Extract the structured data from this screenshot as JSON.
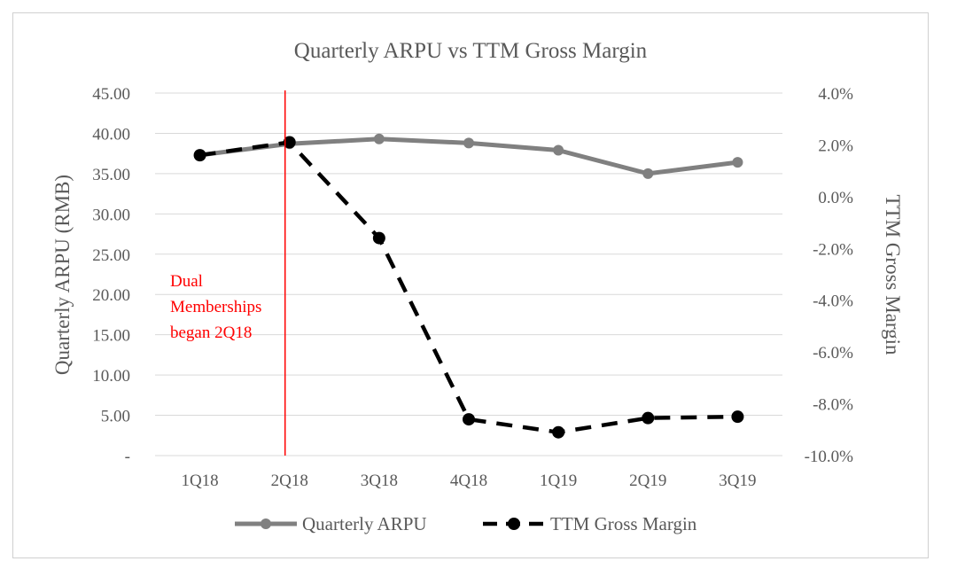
{
  "chart_data": {
    "type": "line",
    "title": "Quarterly ARPU vs TTM Gross Margin",
    "xlabel": "",
    "categories": [
      "1Q18",
      "2Q18",
      "3Q18",
      "4Q18",
      "1Q19",
      "2Q19",
      "3Q19"
    ],
    "y_left": {
      "label": "Quarterly ARPU (RMB)",
      "ylim": [
        0,
        45
      ],
      "ticks": [
        0,
        5,
        10,
        15,
        20,
        25,
        30,
        35,
        40,
        45
      ],
      "tick_labels": [
        "-",
        "5.00",
        "10.00",
        "15.00",
        "20.00",
        "25.00",
        "30.00",
        "35.00",
        "40.00",
        "45.00"
      ]
    },
    "y_right": {
      "label": "TTM Gross Margin",
      "ylim": [
        -10,
        4
      ],
      "ticks": [
        -10,
        -8,
        -6,
        -4,
        -2,
        0,
        2,
        4
      ],
      "tick_labels": [
        "-10.0%",
        "-8.0%",
        "-6.0%",
        "-4.0%",
        "-2.0%",
        "0.0%",
        "2.0%",
        "4.0%"
      ]
    },
    "series": [
      {
        "name": "Quarterly ARPU",
        "axis": "left",
        "style": "solid",
        "color": "#808080",
        "values": [
          37.3,
          38.7,
          39.3,
          38.8,
          37.9,
          35.0,
          36.4
        ]
      },
      {
        "name": "TTM Gross Margin",
        "axis": "right",
        "style": "dashed",
        "color": "#000000",
        "values": [
          1.6,
          2.1,
          -1.6,
          -8.6,
          -9.1,
          -8.55,
          -8.5
        ]
      }
    ],
    "annotation": {
      "lines": [
        "Dual",
        "Memberships",
        "began 2Q18"
      ],
      "at_category": "2Q18",
      "color": "#ff0000"
    },
    "grid": true,
    "legend_position": "bottom"
  }
}
